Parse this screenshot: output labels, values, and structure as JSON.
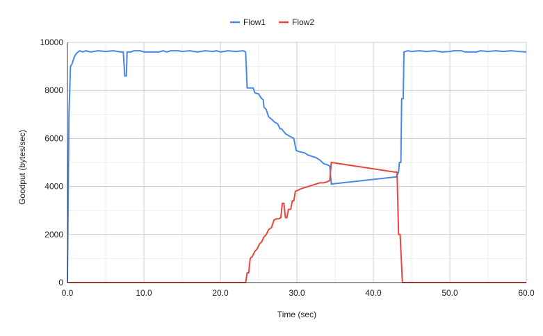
{
  "chart_data": {
    "type": "line",
    "xlabel": "Time (sec)",
    "ylabel": "Goodput (bytes/sec)",
    "xlim": [
      0,
      60
    ],
    "ylim": [
      0,
      10000
    ],
    "x_ticks": [
      "0.0",
      "10.0",
      "20.0",
      "30.0",
      "40.0",
      "50.0",
      "60.0"
    ],
    "y_ticks": [
      "0",
      "2000",
      "4000",
      "6000",
      "8000",
      "10000"
    ],
    "x_tick_values": [
      0,
      10,
      20,
      30,
      40,
      50,
      60
    ],
    "y_tick_values": [
      0,
      2000,
      4000,
      6000,
      8000,
      10000
    ],
    "y_minor_step": 1000,
    "x_minor_step": 5,
    "grid": true,
    "legend_position": "top-center",
    "series": [
      {
        "name": "Flow1",
        "color": "#4a86e8",
        "points": [
          [
            0,
            0
          ],
          [
            0.2,
            7000
          ],
          [
            0.4,
            9000
          ],
          [
            0.6,
            9100
          ],
          [
            0.9,
            9400
          ],
          [
            1.2,
            9550
          ],
          [
            1.6,
            9650
          ],
          [
            2.0,
            9600
          ],
          [
            2.4,
            9650
          ],
          [
            3.0,
            9600
          ],
          [
            4.0,
            9650
          ],
          [
            5.0,
            9620
          ],
          [
            6.0,
            9650
          ],
          [
            7.0,
            9600
          ],
          [
            7.3,
            9600
          ],
          [
            7.5,
            8600
          ],
          [
            7.7,
            8600
          ],
          [
            7.8,
            9600
          ],
          [
            8.3,
            9600
          ],
          [
            8.7,
            9650
          ],
          [
            9.5,
            9650
          ],
          [
            10.0,
            9600
          ],
          [
            11.0,
            9600
          ],
          [
            12.0,
            9600
          ],
          [
            12.5,
            9650
          ],
          [
            13.0,
            9600
          ],
          [
            13.5,
            9650
          ],
          [
            14.5,
            9650
          ],
          [
            15.0,
            9620
          ],
          [
            16.0,
            9650
          ],
          [
            17.0,
            9600
          ],
          [
            18.0,
            9650
          ],
          [
            19.0,
            9620
          ],
          [
            19.5,
            9650
          ],
          [
            20.0,
            9600
          ],
          [
            21.0,
            9650
          ],
          [
            22.0,
            9620
          ],
          [
            23.0,
            9650
          ],
          [
            23.3,
            9600
          ],
          [
            23.5,
            8100
          ],
          [
            24.0,
            8100
          ],
          [
            24.3,
            8100
          ],
          [
            24.5,
            7900
          ],
          [
            25.0,
            7850
          ],
          [
            25.3,
            7700
          ],
          [
            25.6,
            7600
          ],
          [
            25.7,
            7300
          ],
          [
            26.0,
            7200
          ],
          [
            26.3,
            6900
          ],
          [
            26.7,
            6800
          ],
          [
            27.0,
            6700
          ],
          [
            27.5,
            6600
          ],
          [
            27.8,
            6400
          ],
          [
            28.0,
            6400
          ],
          [
            28.5,
            6200
          ],
          [
            29.0,
            6100
          ],
          [
            29.6,
            6000
          ],
          [
            29.9,
            5500
          ],
          [
            30.3,
            5450
          ],
          [
            31.0,
            5400
          ],
          [
            31.5,
            5300
          ],
          [
            32.0,
            5250
          ],
          [
            32.5,
            5200
          ],
          [
            33.0,
            5100
          ],
          [
            33.5,
            4950
          ],
          [
            34.0,
            4900
          ],
          [
            34.3,
            4850
          ],
          [
            34.5,
            4100
          ],
          [
            43.0,
            4400
          ],
          [
            43.3,
            4600
          ],
          [
            43.4,
            5000
          ],
          [
            43.6,
            5000
          ],
          [
            43.7,
            7650
          ],
          [
            43.9,
            7650
          ],
          [
            44.0,
            9600
          ],
          [
            44.5,
            9650
          ],
          [
            45.0,
            9620
          ],
          [
            46.0,
            9650
          ],
          [
            47.0,
            9620
          ],
          [
            48.0,
            9650
          ],
          [
            49.0,
            9600
          ],
          [
            50.0,
            9620
          ],
          [
            50.5,
            9650
          ],
          [
            51.5,
            9650
          ],
          [
            52.0,
            9600
          ],
          [
            53.5,
            9600
          ],
          [
            54.0,
            9650
          ],
          [
            55.0,
            9620
          ],
          [
            56.0,
            9650
          ],
          [
            57.0,
            9620
          ],
          [
            58.0,
            9650
          ],
          [
            59.0,
            9620
          ],
          [
            60.0,
            9600
          ]
        ]
      },
      {
        "name": "Flow2",
        "color": "#e8453c",
        "points": [
          [
            0,
            0
          ],
          [
            23.3,
            0
          ],
          [
            23.5,
            400
          ],
          [
            23.7,
            400
          ],
          [
            23.9,
            1000
          ],
          [
            24.2,
            1100
          ],
          [
            24.5,
            1300
          ],
          [
            24.8,
            1400
          ],
          [
            25.1,
            1600
          ],
          [
            25.4,
            1700
          ],
          [
            25.7,
            1900
          ],
          [
            26.0,
            2000
          ],
          [
            26.3,
            2200
          ],
          [
            26.7,
            2300
          ],
          [
            27.0,
            2600
          ],
          [
            27.3,
            2650
          ],
          [
            27.6,
            2650
          ],
          [
            27.9,
            2700
          ],
          [
            28.1,
            3300
          ],
          [
            28.3,
            3300
          ],
          [
            28.5,
            2700
          ],
          [
            28.7,
            2700
          ],
          [
            28.9,
            3050
          ],
          [
            29.2,
            3050
          ],
          [
            29.4,
            3400
          ],
          [
            29.6,
            3400
          ],
          [
            29.8,
            3800
          ],
          [
            30.2,
            3850
          ],
          [
            30.5,
            3900
          ],
          [
            31.0,
            3950
          ],
          [
            31.5,
            4000
          ],
          [
            32.0,
            4050
          ],
          [
            32.5,
            4100
          ],
          [
            33.0,
            4150
          ],
          [
            33.5,
            4150
          ],
          [
            34.0,
            4200
          ],
          [
            34.3,
            4250
          ],
          [
            34.5,
            5000
          ],
          [
            42.8,
            4600
          ],
          [
            43.1,
            4600
          ],
          [
            43.3,
            2000
          ],
          [
            43.5,
            2000
          ],
          [
            43.8,
            0
          ],
          [
            60.0,
            0
          ]
        ]
      }
    ]
  }
}
